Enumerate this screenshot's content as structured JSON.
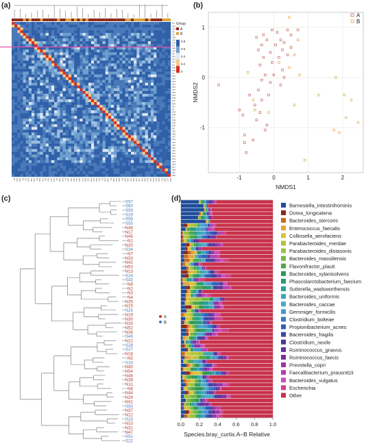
{
  "panels": {
    "a": "(a)",
    "b": "(b)",
    "c": "(c)",
    "d": "(d)"
  },
  "chart_data": [
    {
      "type": "heatmap",
      "panel": "(a)",
      "samples": [
        "N3",
        "N33",
        "N53",
        "N6",
        "S8",
        "N35",
        "S30",
        "N44",
        "N5",
        "N46",
        "S24",
        "N9",
        "N16",
        "N12",
        "N31",
        "N4",
        "S35",
        "N42",
        "N7",
        "S26",
        "S22",
        "N15",
        "S13",
        "N10",
        "S37",
        "N19",
        "S51",
        "N45",
        "N27",
        "N50",
        "N11",
        "N1",
        "N36",
        "N48",
        "N2",
        "N38",
        "N40",
        "N53",
        "N8",
        "N32",
        "S59",
        "S57",
        "N52",
        "S25",
        "S43",
        "S40",
        "S54",
        "N21",
        "S23",
        "N34",
        "N13",
        "N20",
        "N17",
        "S59",
        "S27",
        "S60"
      ],
      "group_legend": {
        "title": "Group",
        "items": [
          {
            "label": "A",
            "color": "#8b2a1a"
          },
          {
            "label": "B",
            "color": "#d8a23a"
          }
        ]
      },
      "scale": {
        "ticks": [
          "0.8",
          "0.6",
          "0.4",
          "0.2",
          "0"
        ],
        "colors": [
          "#2f5fa8",
          "#6d9fcf",
          "#dfe9f3",
          "#f7c88a",
          "#d7301f"
        ]
      }
    },
    {
      "type": "scatter",
      "panel": "(b)",
      "xlabel": "NMDS1",
      "ylabel": "NMDS2",
      "xlim": [
        -1.9,
        2.6
      ],
      "ylim": [
        -1.9,
        1.3
      ],
      "xticks": [
        -1,
        0,
        1,
        2
      ],
      "yticks": [
        -1,
        0,
        1
      ],
      "grid": true,
      "legend": "top-right",
      "series": [
        {
          "name": "A",
          "color": "#c0504d",
          "points": [
            [
              -0.3,
              0.85
            ],
            [
              -0.05,
              0.95
            ],
            [
              0.1,
              0.9
            ],
            [
              0.4,
              0.95
            ],
            [
              0.7,
              0.95
            ],
            [
              -0.5,
              0.8
            ],
            [
              -0.2,
              0.75
            ],
            [
              0.2,
              0.75
            ],
            [
              0.5,
              0.85
            ],
            [
              -0.35,
              0.65
            ],
            [
              0.05,
              0.65
            ],
            [
              0.3,
              0.7
            ],
            [
              -0.45,
              0.55
            ],
            [
              -0.1,
              0.5
            ],
            [
              0.25,
              0.55
            ],
            [
              0.5,
              0.6
            ],
            [
              -0.3,
              0.4
            ],
            [
              0.15,
              0.4
            ],
            [
              0.4,
              0.45
            ],
            [
              -0.05,
              0.3
            ],
            [
              -0.4,
              0.25
            ],
            [
              0.25,
              0.15
            ],
            [
              -0.25,
              0.05
            ],
            [
              0.0,
              0.05
            ],
            [
              0.3,
              0.0
            ],
            [
              -0.35,
              -0.05
            ],
            [
              -0.1,
              -0.1
            ],
            [
              0.2,
              -0.15
            ],
            [
              -0.45,
              -0.25
            ],
            [
              -1.6,
              -0.15
            ],
            [
              -0.7,
              -0.35
            ],
            [
              -0.15,
              -0.35
            ],
            [
              -0.35,
              -0.45
            ],
            [
              -0.55,
              -0.55
            ],
            [
              -1.0,
              -0.65
            ],
            [
              -0.4,
              -0.7
            ],
            [
              -0.9,
              -0.75
            ],
            [
              -0.5,
              -0.85
            ],
            [
              -0.2,
              -0.95
            ],
            [
              -0.85,
              -1.15
            ],
            [
              -0.25,
              -1.05
            ],
            [
              -0.6,
              -1.25
            ],
            [
              -0.8,
              -1.5
            ],
            [
              -0.85,
              -1.3
            ]
          ]
        },
        {
          "name": "B",
          "color": "#d8a23a",
          "points": [
            [
              0.45,
              1.2
            ],
            [
              0.7,
              0.75
            ],
            [
              0.6,
              0.45
            ],
            [
              0.15,
              0.3
            ],
            [
              -0.75,
              0.1
            ],
            [
              0.75,
              0.05
            ],
            [
              0.45,
              0.2
            ],
            [
              1.8,
              0.0
            ],
            [
              1.3,
              -0.35
            ],
            [
              2.05,
              -0.35
            ],
            [
              -0.6,
              -0.45
            ],
            [
              2.25,
              -0.45
            ],
            [
              0.6,
              -0.55
            ],
            [
              2.1,
              -0.8
            ],
            [
              -0.55,
              -0.65
            ],
            [
              -0.15,
              -0.7
            ],
            [
              2.45,
              -0.9
            ],
            [
              1.75,
              -1.05
            ],
            [
              1.9,
              -1.1
            ],
            [
              0.9,
              -1.65
            ]
          ]
        }
      ]
    },
    {
      "type": "dendrogram",
      "panel": "(c)",
      "leaves": [
        {
          "label": "S57",
          "group": "B"
        },
        {
          "label": "S60",
          "group": "B"
        },
        {
          "label": "S59",
          "group": "B"
        },
        {
          "label": "S29",
          "group": "B"
        },
        {
          "label": "S58",
          "group": "B"
        },
        {
          "label": "S55",
          "group": "B"
        },
        {
          "label": "N48",
          "group": "A"
        },
        {
          "label": "N17",
          "group": "A"
        },
        {
          "label": "N45",
          "group": "A"
        },
        {
          "label": "N1",
          "group": "A"
        },
        {
          "label": "N20",
          "group": "A"
        },
        {
          "label": "S34",
          "group": "B"
        },
        {
          "label": "N7",
          "group": "A"
        },
        {
          "label": "N33",
          "group": "A"
        },
        {
          "label": "N42",
          "group": "A"
        },
        {
          "label": "N53",
          "group": "A"
        },
        {
          "label": "N13",
          "group": "A"
        },
        {
          "label": "S24",
          "group": "B"
        },
        {
          "label": "S43",
          "group": "B"
        },
        {
          "label": "N9",
          "group": "A"
        },
        {
          "label": "N2",
          "group": "A"
        },
        {
          "label": "N3",
          "group": "A"
        },
        {
          "label": "N4",
          "group": "A"
        },
        {
          "label": "N35",
          "group": "A"
        },
        {
          "label": "N15",
          "group": "A"
        },
        {
          "label": "S25",
          "group": "B"
        },
        {
          "label": "N19",
          "group": "A"
        },
        {
          "label": "N30",
          "group": "A"
        },
        {
          "label": "N16",
          "group": "A"
        },
        {
          "label": "N52",
          "group": "A"
        },
        {
          "label": "N36",
          "group": "A"
        },
        {
          "label": "S49",
          "group": "B"
        },
        {
          "label": "N21",
          "group": "A"
        },
        {
          "label": "S28",
          "group": "B"
        },
        {
          "label": "S27",
          "group": "B"
        },
        {
          "label": "N18",
          "group": "A"
        },
        {
          "label": "N5",
          "group": "A"
        },
        {
          "label": "S26",
          "group": "B"
        },
        {
          "label": "N40",
          "group": "A"
        },
        {
          "label": "N54",
          "group": "A"
        },
        {
          "label": "N46",
          "group": "A"
        },
        {
          "label": "N38",
          "group": "A"
        },
        {
          "label": "N11",
          "group": "A"
        },
        {
          "label": "N6",
          "group": "A"
        },
        {
          "label": "N44",
          "group": "A"
        },
        {
          "label": "N28",
          "group": "A"
        },
        {
          "label": "N41",
          "group": "A"
        },
        {
          "label": "S50",
          "group": "B"
        },
        {
          "label": "N37",
          "group": "A"
        },
        {
          "label": "N12",
          "group": "A"
        },
        {
          "label": "S23",
          "group": "B"
        },
        {
          "label": "N10",
          "group": "A"
        },
        {
          "label": "N31",
          "group": "A"
        },
        {
          "label": "N47",
          "group": "A"
        },
        {
          "label": "S51",
          "group": "B"
        },
        {
          "label": "S22",
          "group": "B"
        }
      ],
      "legend": [
        {
          "label": "A",
          "color": "#c0392b"
        },
        {
          "label": "B",
          "color": "#4a78c2"
        }
      ]
    },
    {
      "type": "bar",
      "subtype": "stacked-horizontal",
      "panel": "(d)",
      "xlabel": "Species.bray_curtis.A–B Relative",
      "xticks": [
        "0.0",
        "0.2",
        "0.4",
        "0.6",
        "0.8",
        "1.0"
      ],
      "xlim": [
        0,
        1
      ],
      "n_bars": 56,
      "taxa": [
        {
          "name": "Barnesiella_intestinihominis",
          "color": "#1f4e9c"
        },
        {
          "name": "Dorea_longicatena",
          "color": "#8b2a1a"
        },
        {
          "name": "Bacteroides_stercoris",
          "color": "#c86a1e"
        },
        {
          "name": "Enterococcus_faecalis",
          "color": "#e4a23a"
        },
        {
          "name": "Collinsella_aerofaciens",
          "color": "#d8c23a"
        },
        {
          "name": "Parabacteroides_merdae",
          "color": "#b9c13a"
        },
        {
          "name": "Parabacteroides_distasonis",
          "color": "#9ac23f"
        },
        {
          "name": "Bacteroides_massiliensis",
          "color": "#74b744"
        },
        {
          "name": "Flavonifractor_plauti",
          "color": "#4fa847"
        },
        {
          "name": "Bacteroides_xylanisolvens",
          "color": "#2f9a52"
        },
        {
          "name": "Phascolarctobacterium_faecium",
          "color": "#2a9a72"
        },
        {
          "name": "Sutterella_wadsworthensis",
          "color": "#2a9e94"
        },
        {
          "name": "Bacteroides_uniformis",
          "color": "#3aa6b3"
        },
        {
          "name": "Bacteroides_caccae",
          "color": "#4aa9c8"
        },
        {
          "name": "Gemmiger_formicilis",
          "color": "#4a95cf"
        },
        {
          "name": "Clostridium_bolteae",
          "color": "#3a78c6"
        },
        {
          "name": "Propionibacterium_acnes",
          "color": "#2e5fb8"
        },
        {
          "name": "Bacteroides_fragilis",
          "color": "#3b48a8"
        },
        {
          "name": "Clostridium_nexile",
          "color": "#4c3a9e"
        },
        {
          "name": "Ruminococcus_gnavus",
          "color": "#62349c"
        },
        {
          "name": "Ruminococcus_faecis",
          "color": "#7a2f9c"
        },
        {
          "name": "Prevotella_copri",
          "color": "#9c33a6"
        },
        {
          "name": "Faecalibacterium_prausnitzii",
          "color": "#b83fb0"
        },
        {
          "name": "Bacteroides_vulgatus",
          "color": "#c94fbb"
        },
        {
          "name": "Escherichia",
          "color": "#d0408a"
        },
        {
          "name": "Other",
          "color": "#c8324c"
        }
      ]
    }
  ]
}
